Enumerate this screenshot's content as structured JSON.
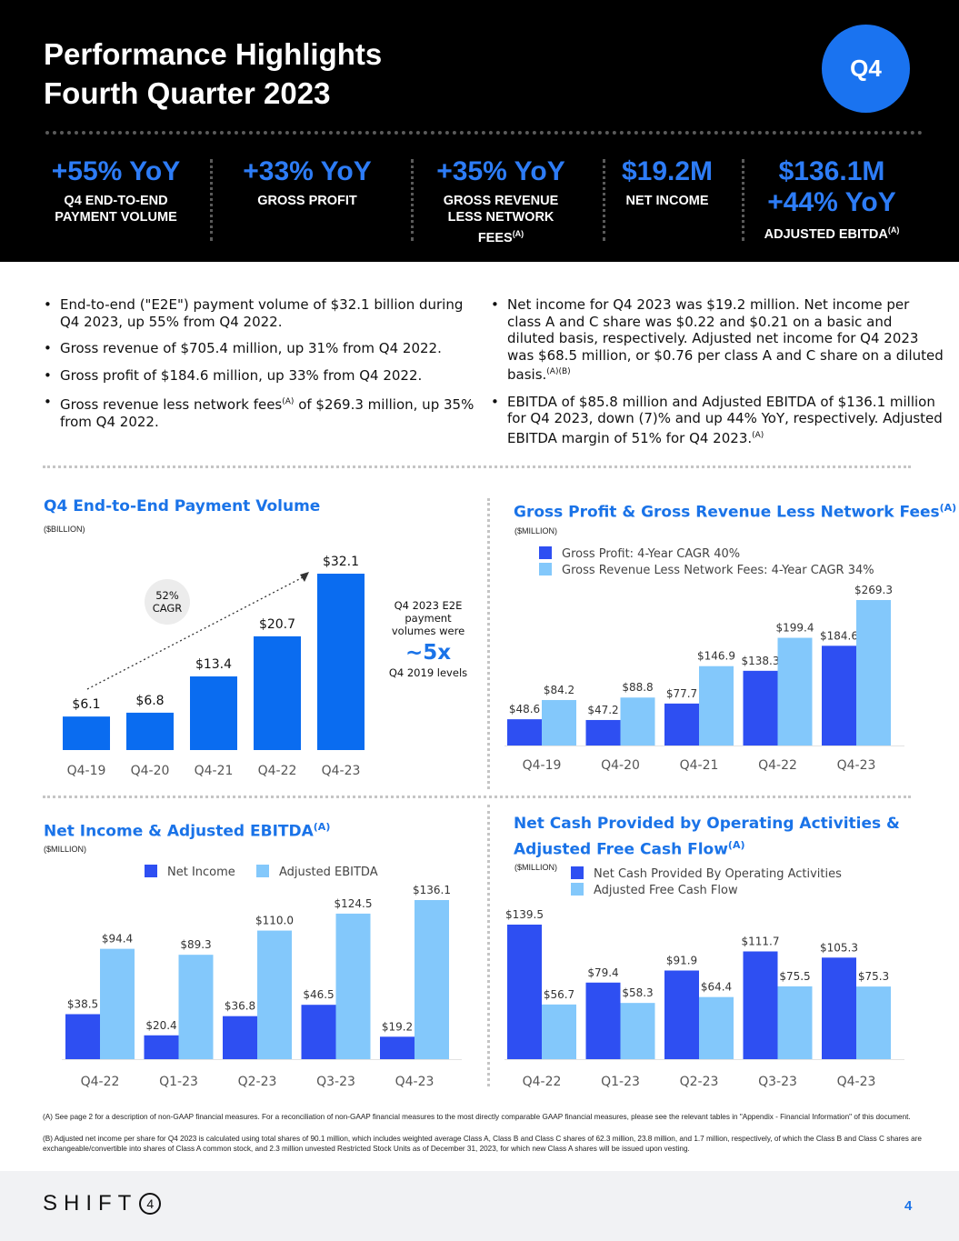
{
  "header": {
    "title_line1": "Performance Highlights",
    "title_line2": "Fourth Quarter 2023",
    "badge": "Q4"
  },
  "kpis": [
    {
      "value": "+55% YoY",
      "label_lines": [
        "Q4 END-TO-END",
        "PAYMENT VOLUME"
      ],
      "note": ""
    },
    {
      "value": "+33% YoY",
      "label_lines": [
        "GROSS PROFIT"
      ],
      "note": ""
    },
    {
      "value": "+35% YoY",
      "label_lines": [
        "GROSS REVENUE",
        "LESS NETWORK",
        "FEES"
      ],
      "note": "(A)"
    },
    {
      "value": "$19.2M",
      "label_lines": [
        "NET INCOME"
      ],
      "note": ""
    },
    {
      "value": "$136.1M",
      "value2": "+44% YoY",
      "label_lines": [
        "ADJUSTED EBITDA"
      ],
      "note": "(A)"
    }
  ],
  "bullets_left": [
    {
      "text": "End-to-end (\"E2E\") payment volume of $32.1 billion during Q4 2023, up 55% from Q4 2022."
    },
    {
      "text": "Gross revenue of $705.4 million, up 31% from Q4 2022."
    },
    {
      "text": "Gross profit of $184.6 million, up 33% from Q4 2022."
    },
    {
      "text_a": "Gross revenue less network fees",
      "sup": "(A)",
      "text_b": " of $269.3 million, up 35% from Q4 2022."
    }
  ],
  "bullets_right": [
    {
      "text": "Net income for Q4 2023 was $19.2 million. Net income per class A and C share was $0.22 and $0.21 on a basic and diluted basis, respectively. Adjusted net income for Q4 2023 was $68.5 million, or $0.76 per class A and C share on a diluted basis.",
      "sup": "(A)(B)"
    },
    {
      "text": "EBITDA of $85.8 million and Adjusted EBITDA of $136.1 million for Q4 2023, down (7)% and up 44% YoY, respectively. Adjusted EBITDA margin of 51% for Q4 2023.",
      "sup": "(A)"
    }
  ],
  "colors": {
    "accent": "#1a73e8",
    "bar_blue": "#0a6cf0",
    "dark": "#2e4ff2",
    "light": "#83c8fb",
    "kpi_blue": "#2d7cf6"
  },
  "chart_data": [
    {
      "type": "bar",
      "title": "Q4 End-to-End Payment Volume",
      "unit": "($BILLION)",
      "categories": [
        "Q4-19",
        "Q4-20",
        "Q4-21",
        "Q4-22",
        "Q4-23"
      ],
      "values": [
        6.1,
        6.8,
        13.4,
        20.7,
        32.1
      ],
      "value_labels": [
        "$6.1",
        "$6.8",
        "$13.4",
        "$20.7",
        "$32.1"
      ],
      "cagr_label_lines": [
        "52%",
        "CAGR"
      ],
      "annotation_lines": [
        "Q4 2023 E2E",
        "payment",
        "volumes were"
      ],
      "annotation_big": "~5x",
      "annotation_after": "Q4 2019 levels"
    },
    {
      "type": "bar",
      "title": "Gross Profit & Gross Revenue Less Network Fees",
      "title_sup": "(A)",
      "unit": "($MILLION)",
      "categories": [
        "Q4-19",
        "Q4-20",
        "Q4-21",
        "Q4-22",
        "Q4-23"
      ],
      "series": [
        {
          "name": "Gross Profit: 4-Year CAGR 40%",
          "values": [
            48.6,
            47.2,
            77.7,
            138.3,
            184.6
          ],
          "labels": [
            "$48.6",
            "$47.2",
            "$77.7",
            "$138.3",
            "$184.6"
          ]
        },
        {
          "name": "Gross Revenue Less Network Fees: 4-Year CAGR 34%",
          "values": [
            84.2,
            88.8,
            146.9,
            199.4,
            269.3
          ],
          "labels": [
            "$84.2",
            "$88.8",
            "$146.9",
            "$199.4",
            "$269.3"
          ]
        }
      ]
    },
    {
      "type": "bar",
      "title": "Net Income & Adjusted EBITDA",
      "title_sup": "(A)",
      "unit": "($MILLION)",
      "categories": [
        "Q4-22",
        "Q1-23",
        "Q2-23",
        "Q3-23",
        "Q4-23"
      ],
      "series": [
        {
          "name": "Net Income",
          "values": [
            38.5,
            20.4,
            36.8,
            46.5,
            19.2
          ],
          "labels": [
            "$38.5",
            "$20.4",
            "$36.8",
            "$46.5",
            "$19.2"
          ]
        },
        {
          "name": "Adjusted EBITDA",
          "values": [
            94.4,
            89.3,
            110.0,
            124.5,
            136.1
          ],
          "labels": [
            "$94.4",
            "$89.3",
            "$110.0",
            "$124.5",
            "$136.1"
          ]
        }
      ]
    },
    {
      "type": "bar",
      "title_line1": "Net Cash Provided by Operating Activities &",
      "title_line2": "Adjusted Free Cash Flow",
      "title_sup": "(A)",
      "unit": "($MILLION)",
      "categories": [
        "Q4-22",
        "Q1-23",
        "Q2-23",
        "Q3-23",
        "Q4-23"
      ],
      "series": [
        {
          "name": "Net Cash Provided By Operating Activities",
          "values": [
            139.5,
            79.4,
            91.9,
            111.7,
            105.3
          ],
          "labels": [
            "$139.5",
            "$79.4",
            "$91.9",
            "$111.7",
            "$105.3"
          ]
        },
        {
          "name": "Adjusted Free Cash Flow",
          "values": [
            56.7,
            58.3,
            64.4,
            75.5,
            75.3
          ],
          "labels": [
            "$56.7",
            "$58.3",
            "$64.4",
            "$75.5",
            "$75.3"
          ]
        }
      ]
    }
  ],
  "footnotes": {
    "a": "(A) See page 2 for a description of non-GAAP financial measures. For a reconciliation of non-GAAP financial measures to the most directly comparable GAAP financial measures, please see the relevant tables in \"Appendix - Financial Information\" of this document.",
    "b": "(B) Adjusted net income per share for Q4 2023 is calculated using total shares of 90.1 million, which includes weighted average Class A, Class B and Class C shares of 62.3 million, 23.8 million, and 1.7 million, respectively, of which the Class B and Class C shares are exchangeable/convertible into shares of Class A common stock, and 2.3 million unvested Restricted Stock Units as of December 31, 2023, for which new Class A shares will be issued upon vesting."
  },
  "footer": {
    "logo_text": "SHIFT",
    "logo_mark": "4",
    "page_number": "4"
  }
}
